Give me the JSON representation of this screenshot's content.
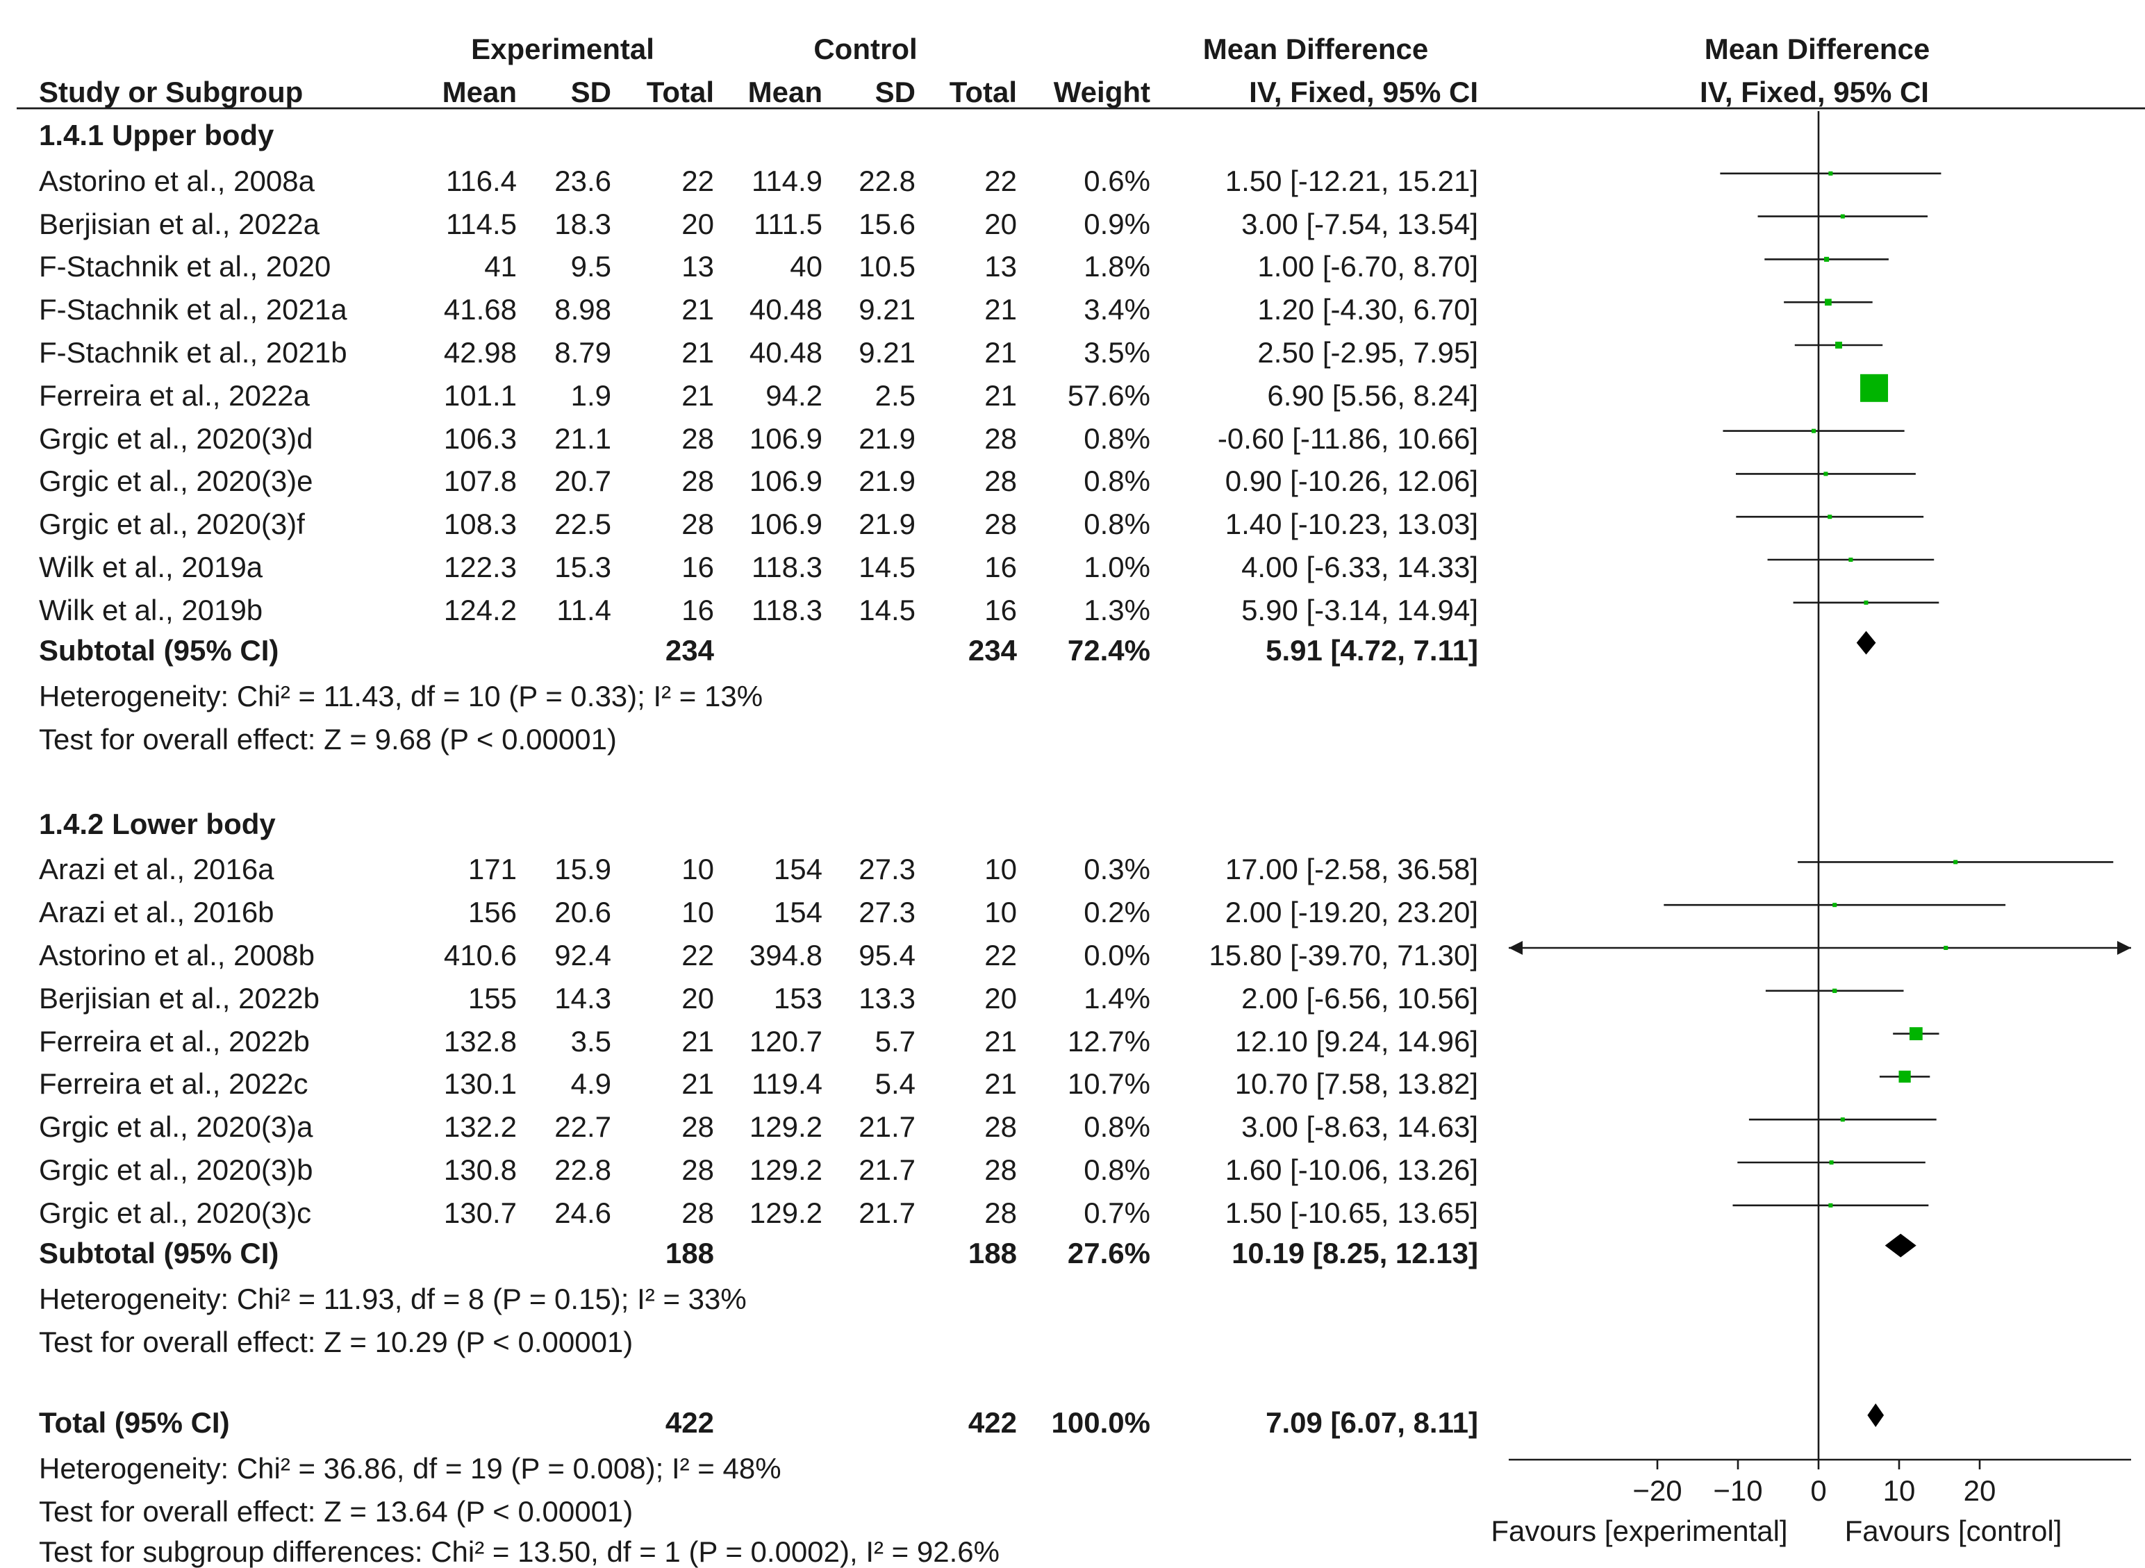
{
  "colors": {
    "box": "#00b400",
    "line": "#1a1a1a",
    "diamond": "#000000"
  },
  "headers": {
    "group_experimental": "Experimental",
    "group_control": "Control",
    "mean_difference_table": "Mean Difference",
    "mean_difference_plot": "Mean Difference",
    "study": "Study or Subgroup",
    "mean": "Mean",
    "sd": "SD",
    "total": "Total",
    "weight": "Weight",
    "method_table": "IV, Fixed, 95% CI",
    "method_plot": "IV, Fixed, 95% CI"
  },
  "subgroups": [
    {
      "title": "1.4.1 Upper body",
      "studies": [
        {
          "name": "Astorino et al., 2008a",
          "e_mean": "116.4",
          "e_sd": "23.6",
          "e_total": "22",
          "c_mean": "114.9",
          "c_sd": "22.8",
          "c_total": "22",
          "weight": "0.6%",
          "ci": "1.50 [-12.21, 15.21]"
        },
        {
          "name": "Berjisian et al., 2022a",
          "e_mean": "114.5",
          "e_sd": "18.3",
          "e_total": "20",
          "c_mean": "111.5",
          "c_sd": "15.6",
          "c_total": "20",
          "weight": "0.9%",
          "ci": "3.00 [-7.54, 13.54]"
        },
        {
          "name": "F-Stachnik et al., 2020",
          "e_mean": "41",
          "e_sd": "9.5",
          "e_total": "13",
          "c_mean": "40",
          "c_sd": "10.5",
          "c_total": "13",
          "weight": "1.8%",
          "ci": "1.00 [-6.70, 8.70]"
        },
        {
          "name": "F-Stachnik et al., 2021a",
          "e_mean": "41.68",
          "e_sd": "8.98",
          "e_total": "21",
          "c_mean": "40.48",
          "c_sd": "9.21",
          "c_total": "21",
          "weight": "3.4%",
          "ci": "1.20 [-4.30, 6.70]"
        },
        {
          "name": "F-Stachnik et al., 2021b",
          "e_mean": "42.98",
          "e_sd": "8.79",
          "e_total": "21",
          "c_mean": "40.48",
          "c_sd": "9.21",
          "c_total": "21",
          "weight": "3.5%",
          "ci": "2.50 [-2.95, 7.95]"
        },
        {
          "name": "Ferreira et al., 2022a",
          "e_mean": "101.1",
          "e_sd": "1.9",
          "e_total": "21",
          "c_mean": "94.2",
          "c_sd": "2.5",
          "c_total": "21",
          "weight": "57.6%",
          "ci": "6.90 [5.56, 8.24]"
        },
        {
          "name": "Grgic et al., 2020(3)d",
          "e_mean": "106.3",
          "e_sd": "21.1",
          "e_total": "28",
          "c_mean": "106.9",
          "c_sd": "21.9",
          "c_total": "28",
          "weight": "0.8%",
          "ci": "-0.60 [-11.86, 10.66]"
        },
        {
          "name": "Grgic et al., 2020(3)e",
          "e_mean": "107.8",
          "e_sd": "20.7",
          "e_total": "28",
          "c_mean": "106.9",
          "c_sd": "21.9",
          "c_total": "28",
          "weight": "0.8%",
          "ci": "0.90 [-10.26, 12.06]"
        },
        {
          "name": "Grgic et al., 2020(3)f",
          "e_mean": "108.3",
          "e_sd": "22.5",
          "e_total": "28",
          "c_mean": "106.9",
          "c_sd": "21.9",
          "c_total": "28",
          "weight": "0.8%",
          "ci": "1.40 [-10.23, 13.03]"
        },
        {
          "name": "Wilk et al., 2019a",
          "e_mean": "122.3",
          "e_sd": "15.3",
          "e_total": "16",
          "c_mean": "118.3",
          "c_sd": "14.5",
          "c_total": "16",
          "weight": "1.0%",
          "ci": "4.00 [-6.33, 14.33]"
        },
        {
          "name": "Wilk et al., 2019b",
          "e_mean": "124.2",
          "e_sd": "11.4",
          "e_total": "16",
          "c_mean": "118.3",
          "c_sd": "14.5",
          "c_total": "16",
          "weight": "1.3%",
          "ci": "5.90 [-3.14, 14.94]"
        }
      ],
      "subtotal": {
        "label": "Subtotal (95% CI)",
        "e_total": "234",
        "c_total": "234",
        "weight": "72.4%",
        "ci": "5.91 [4.72, 7.11]"
      },
      "heterogeneity": "Heterogeneity: Chi² = 11.43, df = 10 (P = 0.33); I² = 13%",
      "overall": "Test for overall effect: Z = 9.68 (P < 0.00001)"
    },
    {
      "title": "1.4.2 Lower body",
      "studies": [
        {
          "name": "Arazi et al., 2016a",
          "e_mean": "171",
          "e_sd": "15.9",
          "e_total": "10",
          "c_mean": "154",
          "c_sd": "27.3",
          "c_total": "10",
          "weight": "0.3%",
          "ci": "17.00 [-2.58, 36.58]"
        },
        {
          "name": "Arazi et al., 2016b",
          "e_mean": "156",
          "e_sd": "20.6",
          "e_total": "10",
          "c_mean": "154",
          "c_sd": "27.3",
          "c_total": "10",
          "weight": "0.2%",
          "ci": "2.00 [-19.20, 23.20]"
        },
        {
          "name": "Astorino et al., 2008b",
          "e_mean": "410.6",
          "e_sd": "92.4",
          "e_total": "22",
          "c_mean": "394.8",
          "c_sd": "95.4",
          "c_total": "22",
          "weight": "0.0%",
          "ci": "15.80 [-39.70, 71.30]"
        },
        {
          "name": "Berjisian et al., 2022b",
          "e_mean": "155",
          "e_sd": "14.3",
          "e_total": "20",
          "c_mean": "153",
          "c_sd": "13.3",
          "c_total": "20",
          "weight": "1.4%",
          "ci": "2.00 [-6.56, 10.56]"
        },
        {
          "name": "Ferreira et al., 2022b",
          "e_mean": "132.8",
          "e_sd": "3.5",
          "e_total": "21",
          "c_mean": "120.7",
          "c_sd": "5.7",
          "c_total": "21",
          "weight": "12.7%",
          "ci": "12.10 [9.24, 14.96]"
        },
        {
          "name": "Ferreira et al., 2022c",
          "e_mean": "130.1",
          "e_sd": "4.9",
          "e_total": "21",
          "c_mean": "119.4",
          "c_sd": "5.4",
          "c_total": "21",
          "weight": "10.7%",
          "ci": "10.70 [7.58, 13.82]"
        },
        {
          "name": "Grgic et al., 2020(3)a",
          "e_mean": "132.2",
          "e_sd": "22.7",
          "e_total": "28",
          "c_mean": "129.2",
          "c_sd": "21.7",
          "c_total": "28",
          "weight": "0.8%",
          "ci": "3.00 [-8.63, 14.63]"
        },
        {
          "name": "Grgic et al., 2020(3)b",
          "e_mean": "130.8",
          "e_sd": "22.8",
          "e_total": "28",
          "c_mean": "129.2",
          "c_sd": "21.7",
          "c_total": "28",
          "weight": "0.8%",
          "ci": "1.60 [-10.06, 13.26]"
        },
        {
          "name": "Grgic et al., 2020(3)c",
          "e_mean": "130.7",
          "e_sd": "24.6",
          "e_total": "28",
          "c_mean": "129.2",
          "c_sd": "21.7",
          "c_total": "28",
          "weight": "0.7%",
          "ci": "1.50 [-10.65, 13.65]"
        }
      ],
      "subtotal": {
        "label": "Subtotal (95% CI)",
        "e_total": "188",
        "c_total": "188",
        "weight": "27.6%",
        "ci": "10.19 [8.25, 12.13]"
      },
      "heterogeneity": "Heterogeneity: Chi² = 11.93, df = 8 (P = 0.15); I² = 33%",
      "overall": "Test for overall effect: Z = 10.29 (P < 0.00001)"
    }
  ],
  "total": {
    "label": "Total (95% CI)",
    "e_total": "422",
    "c_total": "422",
    "weight": "100.0%",
    "ci": "7.09 [6.07, 8.11]"
  },
  "footer": {
    "heterogeneity": "Heterogeneity: Chi² = 36.86, df = 19 (P = 0.008); I² = 48%",
    "overall": "Test for overall effect: Z = 13.64 (P < 0.00001)",
    "subgroup_diff": "Test for subgroup differences: Chi² = 13.50, df = 1 (P = 0.0002), I² = 92.6%"
  },
  "chart_data": {
    "type": "forest",
    "xlim": [
      -38,
      38
    ],
    "x_ticks": [
      -20,
      -10,
      0,
      10,
      20
    ],
    "x_tick_labels": [
      "−20",
      "−10",
      "0",
      "10",
      "20"
    ],
    "favours_left": "Favours [experimental]",
    "favours_right": "Favours [control]",
    "series": [
      {
        "md": 1.5,
        "lo": -12.21,
        "hi": 15.21,
        "weight": 0.6
      },
      {
        "md": 3.0,
        "lo": -7.54,
        "hi": 13.54,
        "weight": 0.9
      },
      {
        "md": 1.0,
        "lo": -6.7,
        "hi": 8.7,
        "weight": 1.8
      },
      {
        "md": 1.2,
        "lo": -4.3,
        "hi": 6.7,
        "weight": 3.4
      },
      {
        "md": 2.5,
        "lo": -2.95,
        "hi": 7.95,
        "weight": 3.5
      },
      {
        "md": 6.9,
        "lo": 5.56,
        "hi": 8.24,
        "weight": 57.6
      },
      {
        "md": -0.6,
        "lo": -11.86,
        "hi": 10.66,
        "weight": 0.8
      },
      {
        "md": 0.9,
        "lo": -10.26,
        "hi": 12.06,
        "weight": 0.8
      },
      {
        "md": 1.4,
        "lo": -10.23,
        "hi": 13.03,
        "weight": 0.8
      },
      {
        "md": 4.0,
        "lo": -6.33,
        "hi": 14.33,
        "weight": 1.0
      },
      {
        "md": 5.9,
        "lo": -3.14,
        "hi": 14.94,
        "weight": 1.3
      },
      {
        "md": 17.0,
        "lo": -2.58,
        "hi": 36.58,
        "weight": 0.3
      },
      {
        "md": 2.0,
        "lo": -19.2,
        "hi": 23.2,
        "weight": 0.2
      },
      {
        "md": 15.8,
        "lo": -39.7,
        "hi": 71.3,
        "weight": 0.0
      },
      {
        "md": 2.0,
        "lo": -6.56,
        "hi": 10.56,
        "weight": 1.4
      },
      {
        "md": 12.1,
        "lo": 9.24,
        "hi": 14.96,
        "weight": 12.7
      },
      {
        "md": 10.7,
        "lo": 7.58,
        "hi": 13.82,
        "weight": 10.7
      },
      {
        "md": 3.0,
        "lo": -8.63,
        "hi": 14.63,
        "weight": 0.8
      },
      {
        "md": 1.6,
        "lo": -10.06,
        "hi": 13.26,
        "weight": 0.8
      },
      {
        "md": 1.5,
        "lo": -10.65,
        "hi": 13.65,
        "weight": 0.7
      }
    ],
    "diamonds": [
      {
        "md": 5.91,
        "lo": 4.72,
        "hi": 7.11
      },
      {
        "md": 10.19,
        "lo": 8.25,
        "hi": 12.13
      },
      {
        "md": 7.09,
        "lo": 6.07,
        "hi": 8.11
      }
    ]
  }
}
